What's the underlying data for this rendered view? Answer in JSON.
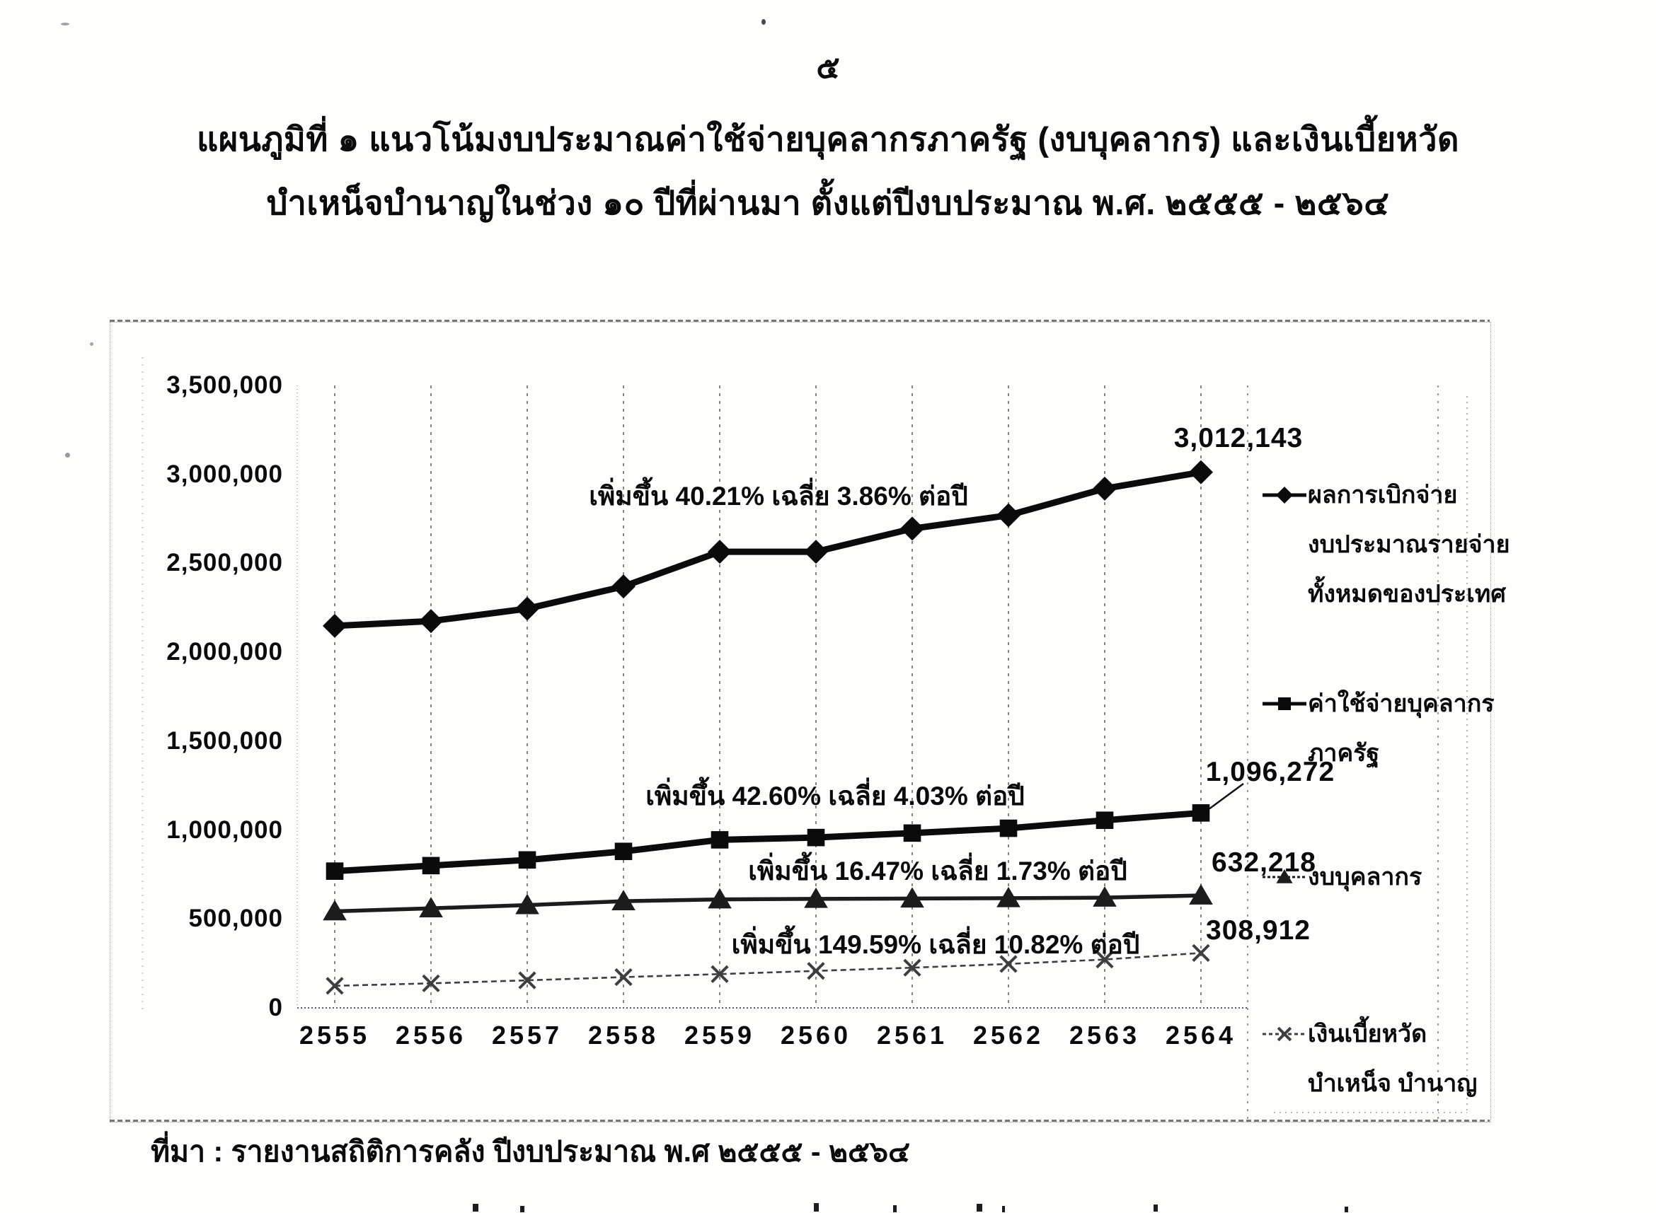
{
  "page": {
    "number": "๕"
  },
  "title": {
    "line1": "แผนภูมิที่ ๑ แนวโน้มงบประมาณค่าใช้จ่ายบุคลากรภาครัฐ (งบบุคลากร) และเงินเบี้ยหวัด",
    "line2": "บำเหน็จบำนาญในช่วง ๑๐ ปีที่ผ่านมา ตั้งแต่ปีงบประมาณ พ.ศ. ๒๕๕๕ - ๒๕๖๔"
  },
  "source_note": "ที่มา : รายงานสถิติการคลัง ปีงบประมาณ พ.ศ ๒๕๕๕ - ๒๕๖๔",
  "chart_data": {
    "type": "line",
    "categories": [
      "2555",
      "2556",
      "2557",
      "2558",
      "2559",
      "2560",
      "2561",
      "2562",
      "2563",
      "2564"
    ],
    "y_ticks": [
      "3,500,000",
      "3,000,000",
      "2,500,000",
      "2,000,000",
      "1,500,000",
      "1,000,000",
      "500,000",
      "0"
    ],
    "ylim": [
      0,
      3500000
    ],
    "xlabel": "",
    "ylabel": "",
    "grid": "vertical-dashed",
    "legend_position": "right",
    "series": [
      {
        "name": "ผลการเบิกจ่ายงบประมาณรายจ่ายทั้งหมดของประเทศ",
        "marker": "diamond",
        "values": [
          2148000,
          2175000,
          2245000,
          2370000,
          2565000,
          2565000,
          2695000,
          2770000,
          2920000,
          3012143
        ],
        "end_label": "3,012,143",
        "annotation": "เพิ่มขึ้น 40.21% เฉลี่ย 3.86% ต่อปี"
      },
      {
        "name": "ค่าใช้จ่ายบุคลากรภาครัฐ",
        "marker": "square",
        "values": [
          769000,
          800000,
          832000,
          880000,
          945000,
          958000,
          983000,
          1010000,
          1055000,
          1096272
        ],
        "end_label": "1,096,272",
        "annotation": "เพิ่มขึ้น 42.60% เฉลี่ย 4.03% ต่อปี"
      },
      {
        "name": "งบบุคลากร",
        "marker": "triangle",
        "values": [
          543000,
          560000,
          578000,
          600000,
          610000,
          613000,
          615000,
          617000,
          620000,
          632218
        ],
        "end_label": "632,218",
        "annotation": "เพิ่มขึ้น 16.47% เฉลี่ย 1.73% ต่อปี"
      },
      {
        "name": "เงินเบี้ยหวัด บำเหน็จ บำนาญ",
        "marker": "x",
        "values": [
          124000,
          138000,
          155000,
          173000,
          190000,
          208000,
          226000,
          247000,
          272000,
          308912
        ],
        "end_label": "308,912",
        "annotation": "เพิ่มขึ้น 149.59% เฉลี่ย 10.82% ต่อปี"
      }
    ],
    "legend": [
      {
        "marker": "diamond",
        "lines": [
          "ผลการเบิกจ่าย",
          "งบประมาณรายจ่าย",
          "ทั้งหมดของประเทศ"
        ]
      },
      {
        "marker": "square",
        "lines": [
          "ค่าใช้จ่ายบุคลากร",
          "ภาครัฐ"
        ]
      },
      {
        "marker": "triangle",
        "lines": [
          "งบบุคลากร"
        ]
      },
      {
        "marker": "x",
        "lines": [
          "เงินเบี้ยหวัด",
          "บำเหน็จ บำนาญ"
        ]
      }
    ],
    "ink_color": "#0b0b0b"
  }
}
